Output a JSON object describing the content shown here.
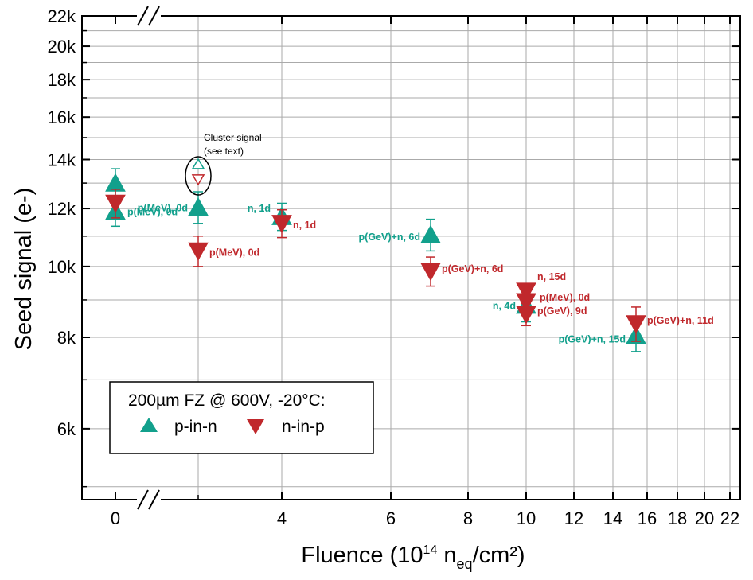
{
  "colors": {
    "p_in_n": "#12a08c",
    "n_in_p": "#c0282c"
  },
  "chart_data": {
    "type": "scatter",
    "xlabel": {
      "main": "Fluence (10",
      "sup": "14",
      "mid": " n",
      "sub": "eq",
      "tail": "/cm²)"
    },
    "ylabel": "Seed signal (e-)",
    "yscale": "log",
    "ylim": [
      4800,
      22000
    ],
    "y_ticks": [
      {
        "v": 6000,
        "label": "6k"
      },
      {
        "v": 8000,
        "label": "8k"
      },
      {
        "v": 10000,
        "label": "10k"
      },
      {
        "v": 12000,
        "label": "12k"
      },
      {
        "v": 14000,
        "label": "14k"
      },
      {
        "v": 16000,
        "label": "16k"
      },
      {
        "v": 18000,
        "label": "18k"
      },
      {
        "v": 20000,
        "label": "20k"
      },
      {
        "v": 22000,
        "label": "22k"
      }
    ],
    "x_ticks": [
      {
        "label": "0"
      },
      {
        "label": "4"
      },
      {
        "label": "6"
      },
      {
        "label": "8"
      },
      {
        "label": "10"
      },
      {
        "label": "12"
      },
      {
        "label": "14"
      },
      {
        "label": "16"
      },
      {
        "label": "18"
      },
      {
        "label": "20"
      },
      {
        "label": "22"
      }
    ],
    "grid": true,
    "axis_break": true,
    "legend": {
      "title": "200µm FZ @ 600V, -20°C:",
      "entries": [
        {
          "name": "p-in-n",
          "marker": "triangle-up",
          "color": "#12a08c"
        },
        {
          "name": "n-in-p",
          "marker": "triangle-down",
          "color": "#c0282c"
        }
      ],
      "position": "bottom-left"
    },
    "series": [
      {
        "name": "p-in-n",
        "marker": "triangle-up",
        "color": "#12a08c",
        "points": [
          {
            "x": 0,
            "y": 13000,
            "err": 600,
            "label": ""
          },
          {
            "x": 0,
            "y": 11900,
            "err": 550,
            "label": "p(MeV), 0d"
          },
          {
            "x": 2,
            "y": 12050,
            "err": 600,
            "label": "p(MeV), 0d"
          },
          {
            "x": 4,
            "y": 11700,
            "err": 500,
            "label": "n, 1d"
          },
          {
            "x": 7,
            "y": 11050,
            "err": 550,
            "label": "p(GeV)+n, 6d"
          },
          {
            "x": 10,
            "y": 8850,
            "err": 450,
            "label": "n, 4d"
          },
          {
            "x": 15,
            "y": 8050,
            "err": 400,
            "label": "p(GeV)+n, 15d"
          }
        ]
      },
      {
        "name": "n-in-p",
        "marker": "triangle-down",
        "color": "#c0282c",
        "points": [
          {
            "x": 0,
            "y": 12200,
            "err": 550,
            "label": ""
          },
          {
            "x": 2,
            "y": 10500,
            "err": 500,
            "label": "p(MeV), 0d"
          },
          {
            "x": 4,
            "y": 11450,
            "err": 500,
            "label": "n, 1d"
          },
          {
            "x": 7,
            "y": 9850,
            "err": 450,
            "label": "p(GeV)+n, 6d"
          },
          {
            "x": 10,
            "y": 9250,
            "err": 0,
            "label": "n, 15d"
          },
          {
            "x": 10,
            "y": 8950,
            "err": 0,
            "label": "p(MeV), 0d"
          },
          {
            "x": 10,
            "y": 8600,
            "err": 300,
            "label": "p(GeV), 9d"
          },
          {
            "x": 15,
            "y": 8350,
            "err": 450,
            "label": "p(GeV)+n, 11d"
          }
        ]
      },
      {
        "name": "cluster signal",
        "points": [
          {
            "x": 2,
            "y": 13800,
            "marker": "triangle-up-open",
            "color": "#12a08c"
          },
          {
            "x": 2,
            "y": 13150,
            "marker": "triangle-down-open",
            "color": "#c0282c"
          }
        ]
      }
    ],
    "annotations": [
      {
        "text_lines": [
          "Cluster signal",
          "(see text)"
        ]
      }
    ]
  }
}
